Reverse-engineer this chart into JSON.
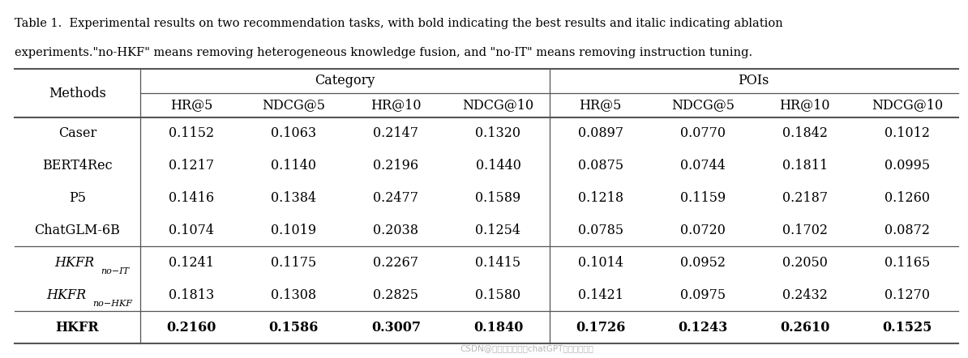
{
  "caption_line1": "Table 1.  Experimental results on two recommendation tasks, with bold indicating the best results and italic indicating ablation",
  "caption_line2": "experiments.\"no-HKF\" means removing heterogeneous knowledge fusion, and \"no-IT\" means removing instruction tuning.",
  "col_header_group1": "Category",
  "col_header_group2": "POIs",
  "col_headers": [
    "HR@5",
    "NDCG@5",
    "HR@10",
    "NDCG@10",
    "HR@5",
    "NDCG@5",
    "HR@10",
    "NDCG@10"
  ],
  "row_header": "Methods",
  "rows": [
    {
      "method": "Caser",
      "style": "normal",
      "values": [
        "0.1152",
        "0.1063",
        "0.2147",
        "0.1320",
        "0.0897",
        "0.0770",
        "0.1842",
        "0.1012"
      ]
    },
    {
      "method": "BERT4Rec",
      "style": "normal",
      "values": [
        "0.1217",
        "0.1140",
        "0.2196",
        "0.1440",
        "0.0875",
        "0.0744",
        "0.1811",
        "0.0995"
      ]
    },
    {
      "method": "P5",
      "style": "normal",
      "values": [
        "0.1416",
        "0.1384",
        "0.2477",
        "0.1589",
        "0.1218",
        "0.1159",
        "0.2187",
        "0.1260"
      ]
    },
    {
      "method": "ChatGLM-6B",
      "style": "normal",
      "values": [
        "0.1074",
        "0.1019",
        "0.2038",
        "0.1254",
        "0.0785",
        "0.0720",
        "0.1702",
        "0.0872"
      ]
    },
    {
      "method": "HKFR_no-IT",
      "style": "italic",
      "values": [
        "0.1241",
        "0.1175",
        "0.2267",
        "0.1415",
        "0.1014",
        "0.0952",
        "0.2050",
        "0.1165"
      ]
    },
    {
      "method": "HKFR_no-HKF",
      "style": "italic",
      "values": [
        "0.1813",
        "0.1308",
        "0.2825",
        "0.1580",
        "0.1421",
        "0.0975",
        "0.2432",
        "0.1270"
      ]
    },
    {
      "method": "HKFR",
      "style": "bold",
      "values": [
        "0.2160",
        "0.1586",
        "0.3007",
        "0.1840",
        "0.1726",
        "0.1243",
        "0.2610",
        "0.1525"
      ]
    }
  ],
  "watermark": "CSDN@人工智能大模型chatGPT培训咋询叶样",
  "bg_color": "#ffffff",
  "text_color": "#000000",
  "line_color": "#555555",
  "caption_fontsize": 10.5,
  "table_fontsize": 11.5,
  "sub_fontsize": 8.0
}
